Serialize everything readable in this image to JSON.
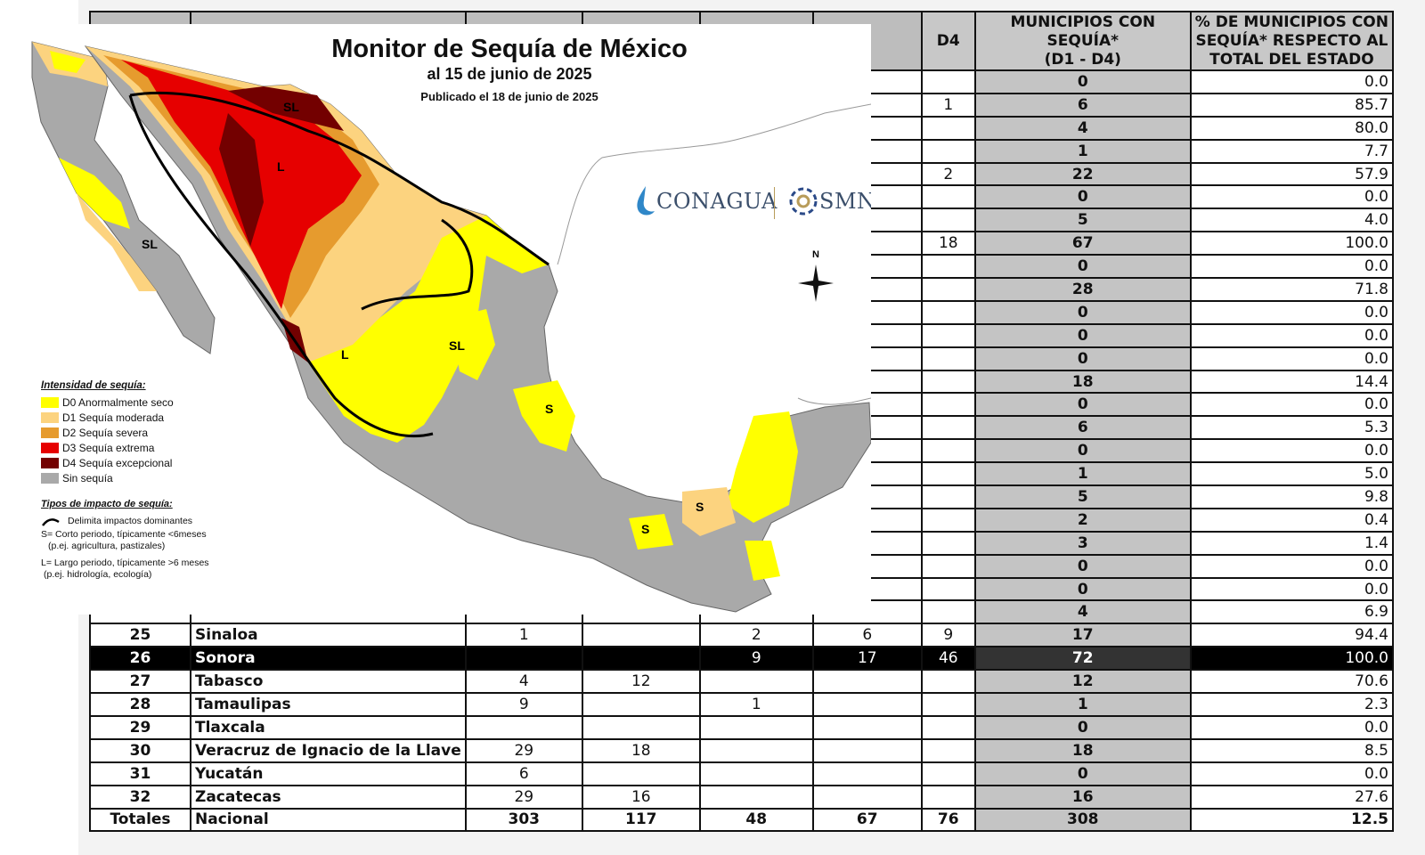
{
  "map": {
    "title": "Monitor de Sequía de México",
    "date": "al 15 de junio de 2025",
    "published": "Publicado el 18 de junio de 2025",
    "legend_title": "Intensidad de sequía:",
    "legend": [
      {
        "label": "D0 Anormalmente seco",
        "color": "#ffff00"
      },
      {
        "label": "D1 Sequía moderada",
        "color": "#fcd37f"
      },
      {
        "label": "D2 Sequía severa",
        "color": "#e69b2e"
      },
      {
        "label": "D3 Sequía extrema",
        "color": "#e60000"
      },
      {
        "label": "D4 Sequía excepcional",
        "color": "#730000"
      },
      {
        "label": "Sin sequía",
        "color": "#a9a9a9"
      }
    ],
    "impact_title": "Tipos de impacto de sequía:",
    "impact_line": "Delimita impactos dominantes",
    "impact_s1": "S= Corto periodo, típicamente <6meses",
    "impact_s2": "(p.ej. agricultura, pastizales)",
    "impact_l1": "L= Largo periodo, típicamente >6 meses",
    "impact_l2": "(p.ej. hidrología, ecología)",
    "logo_conagua": "CONAGUA",
    "logo_smn": "SMN",
    "compass": "N",
    "labels": {
      "sl": "SL",
      "l": "L",
      "s": "S"
    }
  },
  "table": {
    "headers": {
      "d4": "D4",
      "mun": [
        "MUNICIPIOS CON",
        "SEQUÍA*",
        "(D1 - D4)"
      ],
      "pct": [
        "% DE MUNICIPIOS CON",
        "SEQUÍA* RESPECTO AL",
        "TOTAL DEL ESTADO"
      ]
    },
    "upper_rows": [
      {
        "d4": "",
        "mun": "0",
        "pct": "0.0"
      },
      {
        "d4": "1",
        "mun": "6",
        "pct": "85.7"
      },
      {
        "d4": "",
        "mun": "4",
        "pct": "80.0"
      },
      {
        "d4": "",
        "mun": "1",
        "pct": "7.7"
      },
      {
        "d4": "2",
        "mun": "22",
        "pct": "57.9"
      },
      {
        "d4": "",
        "mun": "0",
        "pct": "0.0"
      },
      {
        "d4": "",
        "mun": "5",
        "pct": "4.0"
      },
      {
        "d4": "18",
        "mun": "67",
        "pct": "100.0"
      },
      {
        "d4": "",
        "mun": "0",
        "pct": "0.0"
      },
      {
        "d4": "",
        "mun": "28",
        "pct": "71.8"
      },
      {
        "d4": "",
        "mun": "0",
        "pct": "0.0"
      },
      {
        "d4": "",
        "mun": "0",
        "pct": "0.0"
      },
      {
        "d4": "",
        "mun": "0",
        "pct": "0.0"
      },
      {
        "d4": "",
        "mun": "18",
        "pct": "14.4"
      },
      {
        "d4": "",
        "mun": "0",
        "pct": "0.0"
      },
      {
        "d4": "",
        "mun": "6",
        "pct": "5.3"
      },
      {
        "d4": "",
        "mun": "0",
        "pct": "0.0"
      },
      {
        "d4": "",
        "mun": "1",
        "pct": "5.0"
      },
      {
        "d4": "",
        "mun": "5",
        "pct": "9.8"
      },
      {
        "d4": "",
        "mun": "2",
        "pct": "0.4"
      },
      {
        "d4": "",
        "mun": "3",
        "pct": "1.4"
      },
      {
        "d4": "",
        "mun": "0",
        "pct": "0.0"
      },
      {
        "d4": "",
        "mun": "0",
        "pct": "0.0"
      },
      {
        "d4": "",
        "mun": "4",
        "pct": "6.9"
      }
    ],
    "lower_rows": [
      {
        "n": "25",
        "state": "Sinaloa",
        "d0": "1",
        "d1": "",
        "d2": "2",
        "d3": "6",
        "d4": "9",
        "mun": "17",
        "pct": "94.4"
      },
      {
        "n": "26",
        "state": "Sonora",
        "d0": "",
        "d1": "",
        "d2": "9",
        "d3": "17",
        "d4": "46",
        "mun": "72",
        "pct": "100.0"
      },
      {
        "n": "27",
        "state": "Tabasco",
        "d0": "4",
        "d1": "12",
        "d2": "",
        "d3": "",
        "d4": "",
        "mun": "12",
        "pct": "70.6"
      },
      {
        "n": "28",
        "state": "Tamaulipas",
        "d0": "9",
        "d1": "",
        "d2": "1",
        "d3": "",
        "d4": "",
        "mun": "1",
        "pct": "2.3"
      },
      {
        "n": "29",
        "state": "Tlaxcala",
        "d0": "",
        "d1": "",
        "d2": "",
        "d3": "",
        "d4": "",
        "mun": "0",
        "pct": "0.0"
      },
      {
        "n": "30",
        "state": "Veracruz de Ignacio de la Llave",
        "d0": "29",
        "d1": "18",
        "d2": "",
        "d3": "",
        "d4": "",
        "mun": "18",
        "pct": "8.5"
      },
      {
        "n": "31",
        "state": "Yucatán",
        "d0": "6",
        "d1": "",
        "d2": "",
        "d3": "",
        "d4": "",
        "mun": "0",
        "pct": "0.0"
      },
      {
        "n": "32",
        "state": "Zacatecas",
        "d0": "29",
        "d1": "16",
        "d2": "",
        "d3": "",
        "d4": "",
        "mun": "16",
        "pct": "27.6"
      }
    ],
    "totals": {
      "n": "Totales",
      "state": "Nacional",
      "d0": "303",
      "d1": "117",
      "d2": "48",
      "d3": "67",
      "d4": "76",
      "mun": "308",
      "pct": "12.5"
    }
  }
}
